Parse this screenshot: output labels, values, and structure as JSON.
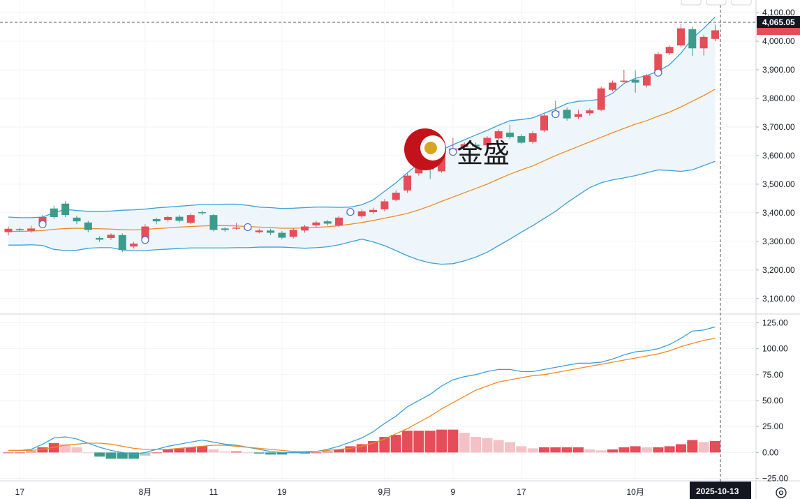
{
  "watermark": {
    "text": "金盛"
  },
  "crosshair": {
    "price_label": "4,065.05",
    "date_label": "2025-10-13"
  },
  "colors": {
    "up": "#e54d58",
    "down": "#3d9b8c",
    "band": "#3aa0d8",
    "mid": "#f08a24",
    "band_fill": "#eef6fb",
    "hist_up": "#e54d58",
    "hist_up_light": "#f4c2c6",
    "hist_down": "#3d9b8c",
    "hist_down_light": "#a9d2cb"
  },
  "chart_data": [
    {
      "type": "candlestick",
      "overlay": "bollinger_bands",
      "y_ticks": [
        "4,100.00",
        "4,000.00",
        "3,900.00",
        "3,800.00",
        "3,700.00",
        "3,600.00",
        "3,500.00",
        "3,400.00",
        "3,300.00",
        "3,200.00",
        "3,100.00"
      ],
      "ylim": [
        3080,
        4105
      ],
      "x_ticks": [
        {
          "label": "17",
          "i": 1
        },
        {
          "label": "8月",
          "i": 12
        },
        {
          "label": "11",
          "i": 18
        },
        {
          "label": "19",
          "i": 24
        },
        {
          "label": "9月",
          "i": 33
        },
        {
          "label": "9",
          "i": 39
        },
        {
          "label": "17",
          "i": 45
        },
        {
          "label": "10月",
          "i": 55
        }
      ],
      "candles": [
        [
          3332,
          3344,
          3321,
          3352
        ],
        [
          3343,
          3339,
          3334,
          3348
        ],
        [
          3337,
          3345,
          3330,
          3355
        ],
        [
          3355,
          3385,
          3348,
          3392
        ],
        [
          3415,
          3385,
          3378,
          3425
        ],
        [
          3432,
          3392,
          3385,
          3440
        ],
        [
          3383,
          3370,
          3360,
          3390
        ],
        [
          3366,
          3340,
          3332,
          3372
        ],
        [
          3312,
          3306,
          3298,
          3318
        ],
        [
          3312,
          3323,
          3305,
          3328
        ],
        [
          3322,
          3270,
          3262,
          3328
        ],
        [
          3282,
          3292,
          3275,
          3298
        ],
        [
          3300,
          3352,
          3292,
          3360
        ],
        [
          3378,
          3370,
          3360,
          3382
        ],
        [
          3375,
          3385,
          3368,
          3390
        ],
        [
          3386,
          3372,
          3365,
          3392
        ],
        [
          3365,
          3392,
          3360,
          3398
        ],
        [
          3402,
          3400,
          3392,
          3408
        ],
        [
          3392,
          3340,
          3335,
          3396
        ],
        [
          3345,
          3340,
          3334,
          3350
        ],
        [
          3345,
          3348,
          3340,
          3365
        ],
        [
          3345,
          3342,
          3338,
          3348
        ],
        [
          3332,
          3338,
          3328,
          3344
        ],
        [
          3338,
          3330,
          3322,
          3344
        ],
        [
          3330,
          3313,
          3307,
          3336
        ],
        [
          3316,
          3340,
          3310,
          3346
        ],
        [
          3338,
          3352,
          3330,
          3358
        ],
        [
          3356,
          3366,
          3350,
          3372
        ],
        [
          3370,
          3362,
          3355,
          3375
        ],
        [
          3356,
          3383,
          3350,
          3390
        ],
        [
          3398,
          3396,
          3390,
          3402
        ],
        [
          3388,
          3405,
          3380,
          3412
        ],
        [
          3402,
          3410,
          3396,
          3418
        ],
        [
          3412,
          3440,
          3405,
          3448
        ],
        [
          3445,
          3470,
          3440,
          3478
        ],
        [
          3478,
          3530,
          3470,
          3538
        ],
        [
          3538,
          3568,
          3530,
          3575
        ],
        [
          3570,
          3552,
          3518,
          3578
        ],
        [
          3545,
          3605,
          3540,
          3612
        ],
        [
          3608,
          3625,
          3600,
          3662
        ],
        [
          3630,
          3640,
          3620,
          3646
        ],
        [
          3638,
          3632,
          3625,
          3645
        ],
        [
          3636,
          3662,
          3630,
          3668
        ],
        [
          3660,
          3685,
          3655,
          3692
        ],
        [
          3680,
          3665,
          3658,
          3708
        ],
        [
          3668,
          3645,
          3640,
          3675
        ],
        [
          3648,
          3678,
          3642,
          3685
        ],
        [
          3688,
          3740,
          3682,
          3748
        ],
        [
          3740,
          3755,
          3735,
          3792
        ],
        [
          3760,
          3730,
          3722,
          3768
        ],
        [
          3735,
          3745,
          3728,
          3760
        ],
        [
          3748,
          3758,
          3740,
          3765
        ],
        [
          3760,
          3835,
          3755,
          3842
        ],
        [
          3830,
          3855,
          3825,
          3862
        ],
        [
          3858,
          3862,
          3855,
          3900
        ],
        [
          3865,
          3855,
          3820,
          3898
        ],
        [
          3845,
          3880,
          3838,
          3885
        ],
        [
          3885,
          3955,
          3878,
          3962
        ],
        [
          3958,
          3980,
          3952,
          3985
        ],
        [
          3985,
          4045,
          3978,
          4060
        ],
        [
          4042,
          3975,
          3948,
          4052
        ],
        [
          3975,
          4015,
          3950,
          4022
        ],
        [
          4008,
          4038,
          4000,
          4058
        ]
      ],
      "bollinger_upper": [
        3385,
        3383,
        3383,
        3385,
        3400,
        3412,
        3408,
        3405,
        3405,
        3406,
        3409,
        3410,
        3413,
        3417,
        3420,
        3423,
        3426,
        3429,
        3429,
        3430,
        3430,
        3426,
        3420,
        3418,
        3415,
        3416,
        3418,
        3420,
        3420,
        3419,
        3420,
        3428,
        3445,
        3475,
        3505,
        3540,
        3572,
        3598,
        3620,
        3638,
        3655,
        3672,
        3688,
        3706,
        3722,
        3726,
        3732,
        3748,
        3764,
        3782,
        3790,
        3792,
        3798,
        3818,
        3852,
        3870,
        3880,
        3895,
        3918,
        3958,
        4010,
        4045,
        4085
      ],
      "bollinger_mid": [
        3335,
        3335,
        3336,
        3338,
        3342,
        3345,
        3346,
        3345,
        3344,
        3343,
        3341,
        3340,
        3342,
        3345,
        3347,
        3350,
        3352,
        3354,
        3355,
        3355,
        3354,
        3352,
        3350,
        3348,
        3346,
        3346,
        3347,
        3349,
        3351,
        3355,
        3360,
        3366,
        3373,
        3381,
        3389,
        3398,
        3410,
        3424,
        3440,
        3455,
        3470,
        3485,
        3500,
        3518,
        3535,
        3550,
        3564,
        3582,
        3600,
        3616,
        3632,
        3648,
        3664,
        3680,
        3695,
        3710,
        3722,
        3738,
        3752,
        3770,
        3790,
        3810,
        3832
      ],
      "bollinger_lower": [
        3287,
        3287,
        3288,
        3286,
        3272,
        3268,
        3269,
        3276,
        3278,
        3278,
        3270,
        3267,
        3268,
        3271,
        3273,
        3275,
        3277,
        3277,
        3277,
        3277,
        3278,
        3278,
        3280,
        3280,
        3280,
        3278,
        3276,
        3278,
        3281,
        3288,
        3298,
        3308,
        3298,
        3285,
        3268,
        3250,
        3235,
        3225,
        3220,
        3222,
        3232,
        3245,
        3262,
        3285,
        3308,
        3332,
        3355,
        3380,
        3405,
        3435,
        3462,
        3488,
        3505,
        3515,
        3522,
        3530,
        3540,
        3550,
        3548,
        3545,
        3550,
        3565,
        3580
      ]
    },
    {
      "type": "macd",
      "y_ticks": [
        "125.00",
        "100.00",
        "75.00",
        "50.00",
        "25.00",
        "0.00",
        "−25.00"
      ],
      "ylim": [
        -28,
        130
      ],
      "macd": [
        2,
        2,
        3,
        8,
        14,
        15,
        13,
        9,
        5,
        2,
        0,
        -2,
        0,
        3,
        6,
        8,
        10,
        12,
        10,
        8,
        7,
        5,
        3,
        1,
        0,
        0,
        0,
        1,
        3,
        6,
        10,
        14,
        20,
        28,
        35,
        44,
        50,
        56,
        64,
        70,
        73,
        75,
        78,
        80,
        80,
        78,
        78,
        80,
        82,
        84,
        86,
        86,
        87,
        90,
        94,
        97,
        98,
        100,
        104,
        110,
        117,
        118,
        121
      ],
      "signal": [
        2,
        2,
        2,
        3,
        5,
        7,
        8,
        9,
        9,
        8,
        6,
        4,
        3,
        3,
        3,
        4,
        5,
        6,
        7,
        7,
        6,
        5,
        4,
        3,
        2,
        1,
        1,
        1,
        2,
        3,
        4,
        6,
        9,
        13,
        18,
        23,
        29,
        35,
        42,
        48,
        54,
        60,
        64,
        68,
        70,
        72,
        74,
        75,
        77,
        79,
        81,
        83,
        85,
        87,
        89,
        91,
        93,
        95,
        98,
        102,
        105,
        108,
        110
      ],
      "histogram": [
        0,
        0,
        1,
        5,
        9,
        8,
        5,
        0,
        -4,
        -6,
        -6,
        -6,
        -3,
        0,
        3,
        4,
        5,
        6,
        3,
        1,
        1,
        0,
        -1,
        -2,
        -2,
        -1,
        -1,
        0,
        1,
        3,
        6,
        8,
        11,
        15,
        17,
        21,
        21,
        21,
        22,
        22,
        19,
        15,
        14,
        12,
        10,
        6,
        4,
        5,
        5,
        5,
        5,
        3,
        2,
        3,
        5,
        6,
        5,
        5,
        6,
        8,
        12,
        10,
        11
      ]
    }
  ]
}
